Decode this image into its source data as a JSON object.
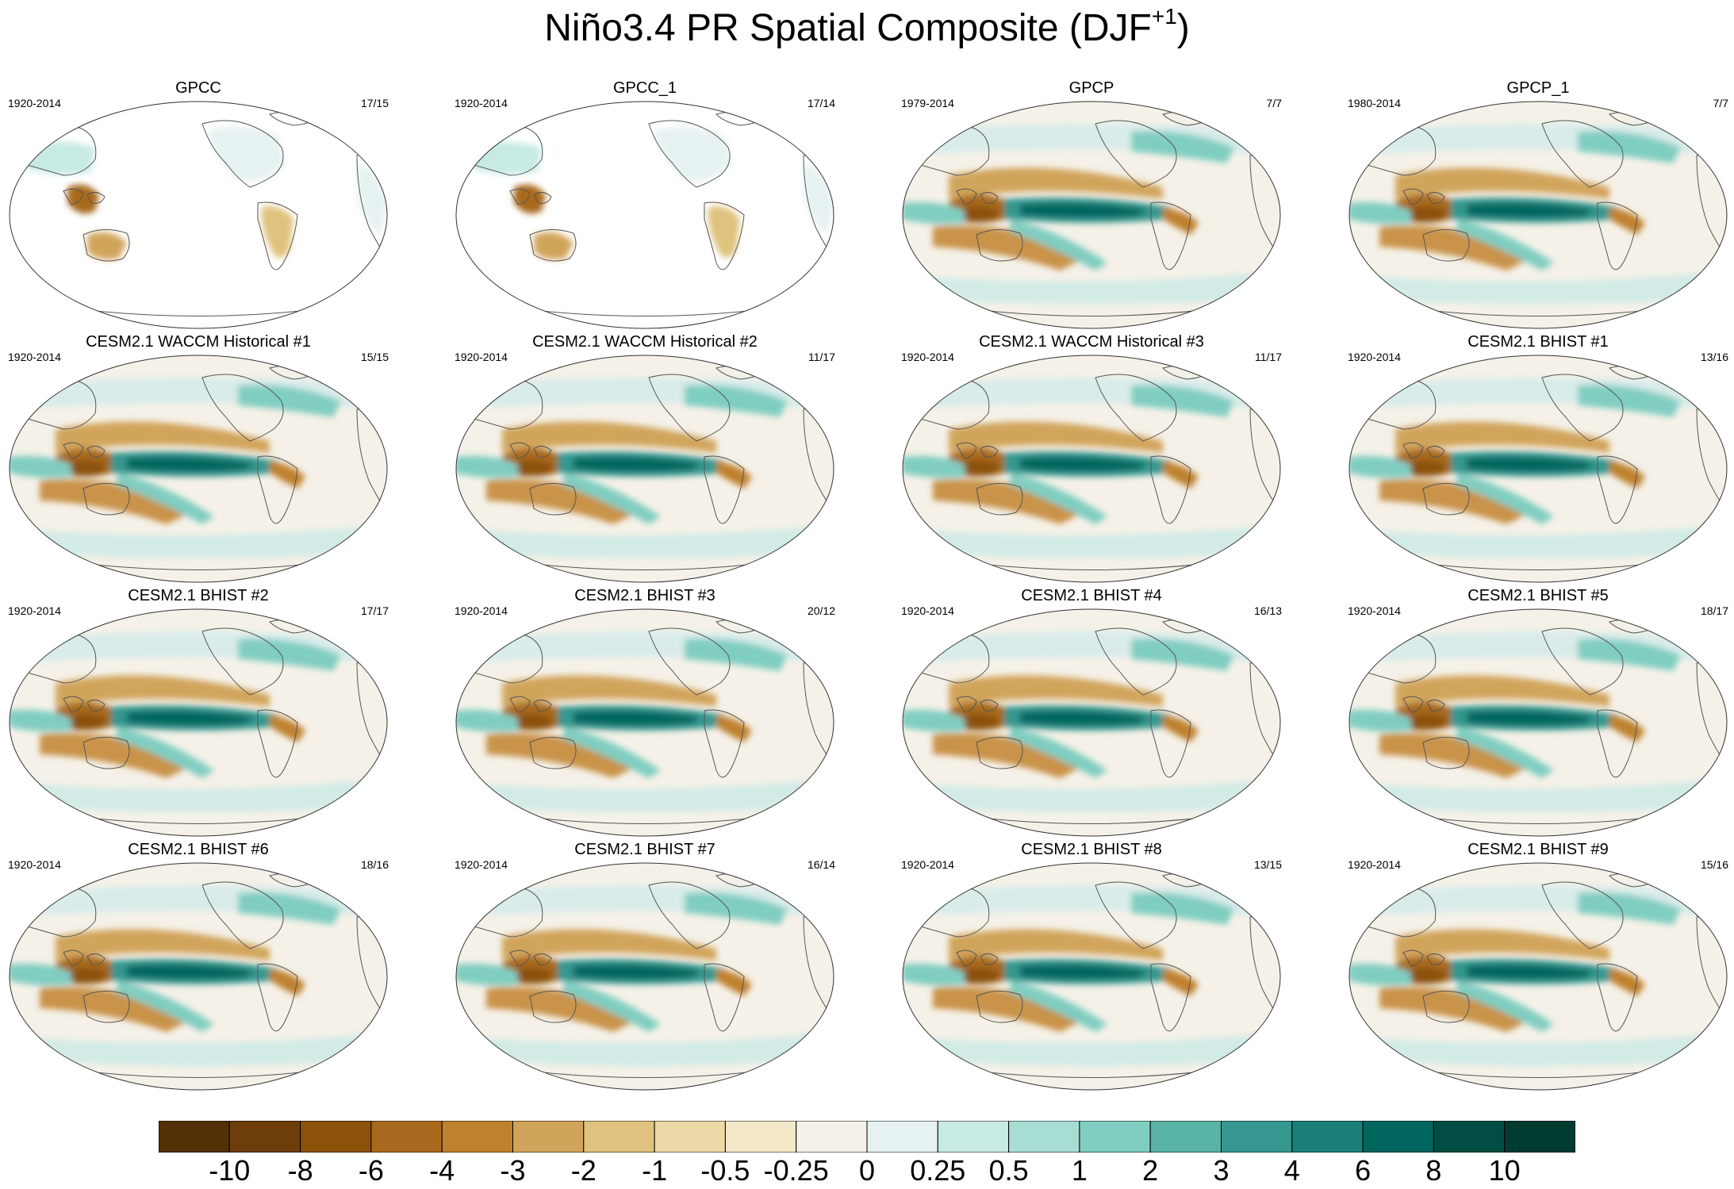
{
  "figure": {
    "title_main": "Niño3.4 PR Spatial Composite (DJF",
    "title_sup": "+1",
    "title_end": ")"
  },
  "chart_data": {
    "type": "heatmap",
    "description": "Composite maps of precipitation anomaly on a global Robinson-like projection, 4x4 panel grid",
    "panels": [
      {
        "title": "GPCC",
        "years": "1920-2014",
        "count": "17/15",
        "ocean": false
      },
      {
        "title": "GPCC_1",
        "years": "1920-2014",
        "count": "17/14",
        "ocean": false
      },
      {
        "title": "GPCP",
        "years": "1979-2014",
        "count": "7/7",
        "ocean": true
      },
      {
        "title": "GPCP_1",
        "years": "1980-2014",
        "count": "7/7",
        "ocean": true
      },
      {
        "title": "CESM2.1 WACCM Historical #1",
        "years": "1920-2014",
        "count": "15/15",
        "ocean": true
      },
      {
        "title": "CESM2.1 WACCM Historical #2",
        "years": "1920-2014",
        "count": "11/17",
        "ocean": true
      },
      {
        "title": "CESM2.1 WACCM Historical #3",
        "years": "1920-2014",
        "count": "11/17",
        "ocean": true
      },
      {
        "title": "CESM2.1 BHIST #1",
        "years": "1920-2014",
        "count": "13/16",
        "ocean": true
      },
      {
        "title": "CESM2.1 BHIST #2",
        "years": "1920-2014",
        "count": "17/17",
        "ocean": true
      },
      {
        "title": "CESM2.1 BHIST #3",
        "years": "1920-2014",
        "count": "20/12",
        "ocean": true
      },
      {
        "title": "CESM2.1 BHIST #4",
        "years": "1920-2014",
        "count": "16/13",
        "ocean": true
      },
      {
        "title": "CESM2.1 BHIST #5",
        "years": "1920-2014",
        "count": "18/17",
        "ocean": true
      },
      {
        "title": "CESM2.1 BHIST #6",
        "years": "1920-2014",
        "count": "18/16",
        "ocean": true
      },
      {
        "title": "CESM2.1 BHIST #7",
        "years": "1920-2014",
        "count": "16/14",
        "ocean": true
      },
      {
        "title": "CESM2.1 BHIST #8",
        "years": "1920-2014",
        "count": "13/15",
        "ocean": true
      },
      {
        "title": "CESM2.1 BHIST #9",
        "years": "1920-2014",
        "count": "15/16",
        "ocean": true
      }
    ],
    "colorbar": {
      "labels": [
        "-10",
        "-8",
        "-6",
        "-4",
        "-3",
        "-2",
        "-1",
        "-0.5",
        "-0.25",
        "0",
        "0.25",
        "0.5",
        "1",
        "2",
        "3",
        "4",
        "6",
        "8",
        "10"
      ],
      "colors": [
        "#543005",
        "#6d3e0c",
        "#8c510a",
        "#a8691f",
        "#bf812d",
        "#d1a45c",
        "#dfc27d",
        "#ecd9a8",
        "#f3e8c8",
        "#f5f1e8",
        "#e6f2f1",
        "#c7eae5",
        "#a8ddd4",
        "#80cdc1",
        "#5ab4a6",
        "#35978f",
        "#1c7f77",
        "#01665e",
        "#014d44",
        "#003c30"
      ]
    }
  }
}
